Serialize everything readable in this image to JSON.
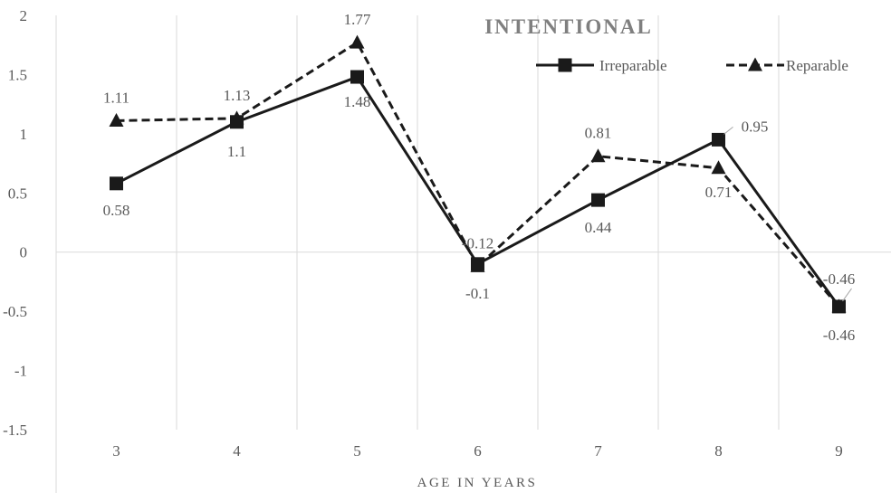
{
  "chart_data": {
    "type": "line",
    "title": "INTENTIONAL",
    "xlabel": "AGE IN YEARS",
    "ylabel": "",
    "categories": [
      "3",
      "4",
      "5",
      "6",
      "7",
      "8",
      "9"
    ],
    "ylim": [
      -1.5,
      2
    ],
    "yticks": [
      "2",
      "1.5",
      "1",
      "0.5",
      "0",
      "-0.5",
      "-1",
      "-1.5"
    ],
    "grid": "vertical",
    "legend_position": "top-right",
    "series": [
      {
        "name": "Irreparable",
        "values": [
          0.58,
          1.1,
          1.48,
          -0.1,
          0.44,
          0.95,
          -0.46
        ],
        "labels": [
          "0.58",
          "1.1",
          "1.48",
          "-0.1",
          "0.44",
          "0.95",
          "-0.46"
        ],
        "marker": "square",
        "line_style": "solid",
        "color": "#1a1a1a"
      },
      {
        "name": "Reparable",
        "values": [
          1.11,
          1.13,
          1.77,
          -0.12,
          0.81,
          0.71,
          -0.46
        ],
        "labels": [
          "1.11",
          "1.13",
          "1.77",
          "-0.12",
          "0.81",
          "0.71",
          "-0.46"
        ],
        "marker": "triangle",
        "line_style": "dashed",
        "color": "#1a1a1a"
      }
    ]
  }
}
